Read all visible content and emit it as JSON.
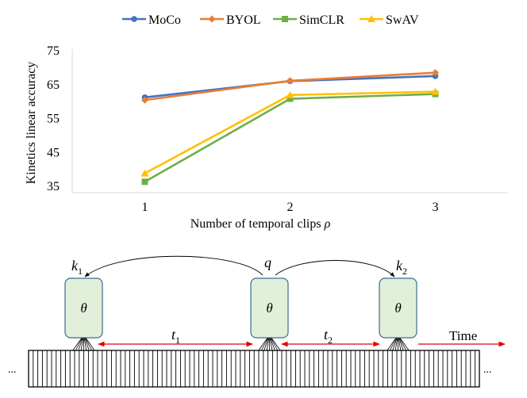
{
  "chart_data": {
    "type": "line",
    "xlabel_text": "Number of temporal clips",
    "xlabel_symbol": "ρ",
    "ylabel": "Kinetics linear accuracy",
    "categories": [
      "1",
      "2",
      "3"
    ],
    "x": [
      1,
      2,
      3
    ],
    "ylim": [
      35,
      75
    ],
    "yticks": [
      35,
      45,
      55,
      65,
      75
    ],
    "grid": false,
    "legend": "top",
    "series": [
      {
        "name": "MoCo",
        "color": "#4472C4",
        "marker": "circle",
        "values": [
          61.0,
          65.8,
          67.3
        ]
      },
      {
        "name": "BYOL",
        "color": "#ED7D31",
        "marker": "diamond",
        "values": [
          60.2,
          65.9,
          68.3
        ]
      },
      {
        "name": "SimCLR",
        "color": "#70AD47",
        "marker": "square",
        "values": [
          36.1,
          60.6,
          62.0
        ]
      },
      {
        "name": "SwAV",
        "color": "#FFC000",
        "marker": "triangle",
        "values": [
          38.6,
          61.7,
          62.7
        ]
      }
    ]
  },
  "diagram": {
    "encoder_symbol": "θ",
    "key1": "k",
    "key1_sub": "1",
    "query": "q",
    "key2": "k",
    "key2_sub": "2",
    "gap1": "t",
    "gap1_sub": "1",
    "gap2": "t",
    "gap2_sub": "2",
    "time_label": "Time",
    "ellipsis_left": "...",
    "ellipsis_right": "...",
    "box_fill": "#E2EFD9",
    "box_stroke": "#3A6E8F",
    "arrow_color": "#E00000"
  }
}
